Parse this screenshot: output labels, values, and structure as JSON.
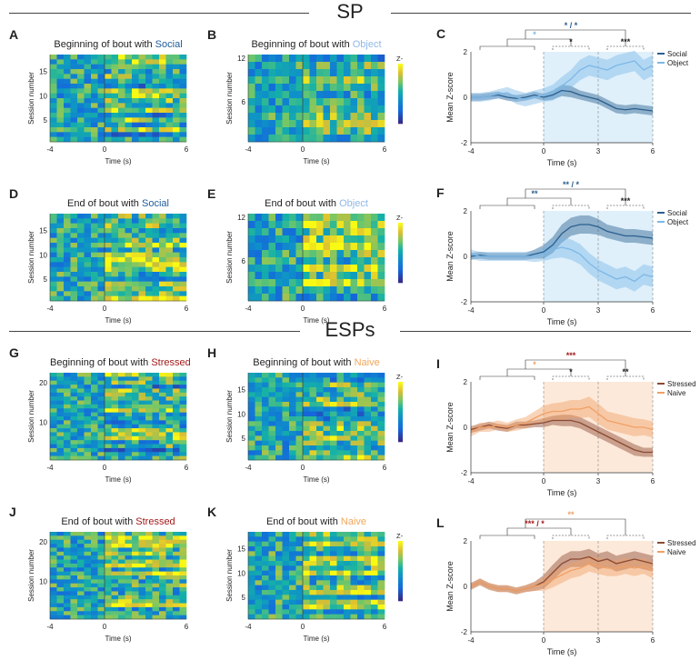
{
  "sections": [
    {
      "title": "SP"
    },
    {
      "title": "ESPs"
    }
  ],
  "colors": {
    "social": "#2b5f8e",
    "object": "#7db8e6",
    "stressed": "#8b4a33",
    "naive": "#f0a066",
    "socialTitle": "#1f5c99",
    "objectTitle": "#8fb8e8",
    "stressedTitle": "#a31a1a",
    "naiveTitle": "#f0a75a",
    "blueShade": "#dff0fb",
    "orangeShade": "#fde9d9"
  },
  "heatmaps": [
    {
      "letter": "A",
      "title_pre": "Beginning of bout with ",
      "title_key": "Social",
      "key_color": "social",
      "ylabel": "Session number",
      "xlabel": "Time (s)",
      "rows": 18,
      "yticks": [
        "15",
        "10",
        "5"
      ],
      "xticks": [
        "-4",
        "0",
        "6"
      ],
      "colorbar": false
    },
    {
      "letter": "B",
      "title_pre": "Beginning of bout with ",
      "title_key": "Object",
      "key_color": "object",
      "ylabel": "Session number",
      "xlabel": "Time (s)",
      "rows": 12,
      "yticks": [
        "12",
        "6"
      ],
      "xticks": [
        "-4",
        "0",
        "6"
      ],
      "colorbar": true,
      "cbar_title": "Z-score",
      "cbar_ticks": [
        "1",
        "0",
        "-1"
      ]
    },
    {
      "letter": "D",
      "title_pre": "End of bout with ",
      "title_key": "Social",
      "key_color": "social",
      "ylabel": "Session number",
      "xlabel": "Time (s)",
      "rows": 18,
      "yticks": [
        "15",
        "10",
        "5"
      ],
      "xticks": [
        "-4",
        "0",
        "6"
      ],
      "colorbar": false
    },
    {
      "letter": "E",
      "title_pre": "End of bout with ",
      "title_key": "Object",
      "key_color": "object",
      "ylabel": "Session number",
      "xlabel": "Time (s)",
      "rows": 12,
      "yticks": [
        "12",
        "6"
      ],
      "xticks": [
        "-4",
        "0",
        "6"
      ],
      "colorbar": true,
      "cbar_title": "Z-score",
      "cbar_ticks": [
        "1",
        "0",
        "-1"
      ]
    },
    {
      "letter": "G",
      "title_pre": "Beginning of bout with ",
      "title_key": "Stressed",
      "key_color": "stressed",
      "ylabel": "Session number",
      "xlabel": "Time (s)",
      "rows": 22,
      "yticks": [
        "20",
        "10"
      ],
      "xticks": [
        "-4",
        "0",
        "6"
      ],
      "colorbar": false
    },
    {
      "letter": "H",
      "title_pre": "Beginning of bout with ",
      "title_key": "Naive",
      "key_color": "naive",
      "ylabel": "Session number",
      "xlabel": "Time (s)",
      "rows": 18,
      "yticks": [
        "15",
        "10",
        "5"
      ],
      "xticks": [
        "-4",
        "0",
        "6"
      ],
      "colorbar": true,
      "cbar_title": "Z-score",
      "cbar_ticks": [
        "1",
        "0",
        "-1"
      ]
    },
    {
      "letter": "J",
      "title_pre": "End of bout with ",
      "title_key": "Stressed",
      "key_color": "stressed",
      "ylabel": "Session number",
      "xlabel": "Time (s)",
      "rows": 22,
      "yticks": [
        "20",
        "10"
      ],
      "xticks": [
        "-4",
        "0",
        "6"
      ],
      "colorbar": false
    },
    {
      "letter": "K",
      "title_pre": "End of bout with ",
      "title_key": "Naive",
      "key_color": "naive",
      "ylabel": "Session number",
      "xlabel": "Time (s)",
      "rows": 18,
      "yticks": [
        "15",
        "10",
        "5"
      ],
      "xticks": [
        "-4",
        "0",
        "6"
      ],
      "colorbar": true,
      "cbar_title": "Z-score",
      "cbar_ticks": [
        "1",
        "0",
        "-1"
      ]
    }
  ],
  "chart_data": [
    {
      "letter": "C",
      "type": "line",
      "xlabel": "Time (s)",
      "ylabel": "Mean Z-score",
      "xlim": [
        -4,
        6
      ],
      "ylim": [
        -2,
        2
      ],
      "xticks": [
        "-4",
        "0",
        "3",
        "6"
      ],
      "yticks": [
        "2",
        "0",
        "-2"
      ],
      "shade": "blue",
      "x": [
        -4,
        -3.5,
        -3,
        -2.5,
        -2,
        -1.5,
        -1,
        -0.5,
        0,
        0.5,
        1,
        1.5,
        2,
        2.5,
        3,
        3.5,
        4,
        4.5,
        5,
        5.5,
        6
      ],
      "series": [
        {
          "name": "Social",
          "color": "social",
          "y": [
            0,
            0,
            0.05,
            0.1,
            0,
            -0.05,
            0,
            0.1,
            0,
            0.1,
            0.3,
            0.25,
            0.1,
            0,
            -0.1,
            -0.3,
            -0.5,
            -0.55,
            -0.5,
            -0.55,
            -0.6
          ],
          "err": [
            0.15,
            0.15,
            0.15,
            0.15,
            0.15,
            0.15,
            0.15,
            0.15,
            0.15,
            0.2,
            0.25,
            0.25,
            0.2,
            0.2,
            0.2,
            0.2,
            0.2,
            0.2,
            0.2,
            0.2,
            0.2
          ]
        },
        {
          "name": "Object",
          "color": "object",
          "y": [
            0,
            0,
            0.05,
            0.15,
            0.2,
            0,
            -0.1,
            0,
            0.1,
            0.2,
            0.5,
            0.8,
            1.2,
            1.4,
            1.3,
            1.2,
            1.4,
            1.5,
            1.6,
            1.2,
            1.4
          ],
          "err": [
            0.2,
            0.2,
            0.2,
            0.2,
            0.25,
            0.3,
            0.3,
            0.3,
            0.3,
            0.35,
            0.4,
            0.4,
            0.45,
            0.45,
            0.45,
            0.45,
            0.45,
            0.45,
            0.45,
            0.45,
            0.45
          ]
        }
      ],
      "brackets": [
        {
          "x1": -3.5,
          "x2": -0.5,
          "y": 1.35
        },
        {
          "x1": 0.5,
          "x2": 2.5,
          "y": 1.35
        },
        {
          "x1": 3.5,
          "x2": 5.5,
          "y": 1.35
        }
      ],
      "stars": [
        {
          "text": "*",
          "x": 1.5,
          "y": 1.55,
          "color": "#222"
        },
        {
          "text": "***",
          "x": 4.5,
          "y": 1.55,
          "color": "#222"
        },
        {
          "text": "*",
          "x": -0.5,
          "y": 1.85,
          "color": "#7db8e6"
        },
        {
          "text": "* / *",
          "x": 1.5,
          "y": 2.35,
          "color": "#2b5f8e"
        }
      ],
      "legend": [
        "Social",
        "Object"
      ]
    },
    {
      "letter": "F",
      "type": "line",
      "xlabel": "Time (s)",
      "ylabel": "Mean Z-score",
      "xlim": [
        -4,
        6
      ],
      "ylim": [
        -2,
        2
      ],
      "xticks": [
        "-4",
        "0",
        "3",
        "6"
      ],
      "yticks": [
        "2",
        "0",
        "-2"
      ],
      "shade": "blue",
      "x": [
        -4,
        -3.5,
        -3,
        -2.5,
        -2,
        -1.5,
        -1,
        -0.5,
        0,
        0.5,
        1,
        1.5,
        2,
        2.5,
        3,
        3.5,
        4,
        4.5,
        5,
        5.5,
        6
      ],
      "series": [
        {
          "name": "Social",
          "color": "social",
          "y": [
            0,
            0.05,
            0,
            0,
            0,
            0,
            0,
            0.1,
            0.2,
            0.5,
            1,
            1.3,
            1.4,
            1.4,
            1.3,
            1.1,
            1,
            0.9,
            0.9,
            0.85,
            0.8
          ],
          "err": [
            0.15,
            0.15,
            0.15,
            0.15,
            0.15,
            0.15,
            0.15,
            0.2,
            0.3,
            0.35,
            0.4,
            0.4,
            0.4,
            0.4,
            0.35,
            0.3,
            0.3,
            0.3,
            0.3,
            0.3,
            0.3
          ]
        },
        {
          "name": "Object",
          "color": "object",
          "y": [
            0.1,
            0,
            0,
            0,
            0,
            0,
            0,
            0,
            0.1,
            0.3,
            0.4,
            0.3,
            0.1,
            -0.3,
            -0.6,
            -0.8,
            -1,
            -0.9,
            -1.1,
            -0.8,
            -0.9
          ],
          "err": [
            0.2,
            0.2,
            0.2,
            0.2,
            0.2,
            0.2,
            0.2,
            0.25,
            0.3,
            0.4,
            0.45,
            0.45,
            0.45,
            0.45,
            0.45,
            0.45,
            0.45,
            0.45,
            0.45,
            0.45,
            0.45
          ]
        }
      ],
      "brackets": [
        {
          "x1": -3.5,
          "x2": -0.5,
          "y": 1.35
        },
        {
          "x1": 0.5,
          "x2": 2.5,
          "y": 1.35
        },
        {
          "x1": 3.5,
          "x2": 5.5,
          "y": 1.35
        }
      ],
      "stars": [
        {
          "text": "***",
          "x": 4.5,
          "y": 1.55,
          "color": "#222"
        },
        {
          "text": "**",
          "x": -0.5,
          "y": 1.85,
          "color": "#2b5f8e"
        },
        {
          "text": "** / *",
          "x": 1.5,
          "y": 2.35,
          "color": "#2b5f8e"
        }
      ],
      "legend": [
        "Social",
        "Object"
      ]
    },
    {
      "letter": "I",
      "type": "line",
      "xlabel": "Time (s)",
      "ylabel": "Mean Z-score",
      "xlim": [
        -4,
        6
      ],
      "ylim": [
        -2,
        2
      ],
      "xticks": [
        "-4",
        "0",
        "3",
        "6"
      ],
      "yticks": [
        "2",
        "0",
        "-2"
      ],
      "shade": "orange",
      "x": [
        -4,
        -3.5,
        -3,
        -2.5,
        -2,
        -1.5,
        -1,
        -0.5,
        0,
        0.5,
        1,
        1.5,
        2,
        2.5,
        3,
        3.5,
        4,
        4.5,
        5,
        5.5,
        6
      ],
      "series": [
        {
          "name": "Stressed",
          "color": "stressed",
          "y": [
            -0.1,
            0,
            0.1,
            0,
            -0.05,
            0.1,
            0.1,
            0.15,
            0.2,
            0.3,
            0.3,
            0.3,
            0.2,
            0,
            -0.2,
            -0.4,
            -0.6,
            -0.8,
            -1,
            -1.1,
            -1.1
          ],
          "err": [
            0.15,
            0.15,
            0.15,
            0.15,
            0.15,
            0.15,
            0.15,
            0.15,
            0.2,
            0.2,
            0.25,
            0.25,
            0.25,
            0.25,
            0.25,
            0.25,
            0.25,
            0.25,
            0.25,
            0.2,
            0.2
          ]
        },
        {
          "name": "Naive",
          "color": "naive",
          "y": [
            -0.2,
            0,
            0,
            0.1,
            0,
            0.1,
            0.2,
            0.4,
            0.6,
            0.7,
            0.7,
            0.8,
            0.8,
            0.9,
            0.6,
            0.3,
            0.2,
            0.1,
            0,
            0,
            -0.1
          ],
          "err": [
            0.2,
            0.2,
            0.2,
            0.2,
            0.2,
            0.25,
            0.25,
            0.3,
            0.35,
            0.35,
            0.4,
            0.4,
            0.4,
            0.45,
            0.45,
            0.4,
            0.4,
            0.4,
            0.4,
            0.35,
            0.35
          ]
        }
      ],
      "brackets": [
        {
          "x1": -3.5,
          "x2": -0.5,
          "y": 1.35
        },
        {
          "x1": 0.5,
          "x2": 2.5,
          "y": 1.35
        },
        {
          "x1": 3.5,
          "x2": 5.5,
          "y": 1.35
        }
      ],
      "stars": [
        {
          "text": "*",
          "x": 1.5,
          "y": 1.55,
          "color": "#222"
        },
        {
          "text": "**",
          "x": 4.5,
          "y": 1.55,
          "color": "#222"
        },
        {
          "text": "*",
          "x": -0.5,
          "y": 1.85,
          "color": "#f0a066"
        },
        {
          "text": "***",
          "x": 1.5,
          "y": 2.35,
          "color": "#a31a1a"
        }
      ],
      "legend": [
        "Stressed",
        "Naive"
      ]
    },
    {
      "letter": "L",
      "type": "line",
      "xlabel": "Time (s)",
      "ylabel": "Mean Z-score",
      "xlim": [
        -4,
        6
      ],
      "ylim": [
        -2,
        2
      ],
      "xticks": [
        "-4",
        "0",
        "3",
        "6"
      ],
      "yticks": [
        "2",
        "0",
        "-2"
      ],
      "shade": "orange",
      "x": [
        -4,
        -3.5,
        -3,
        -2.5,
        -2,
        -1.5,
        -1,
        -0.5,
        0,
        0.5,
        1,
        1.5,
        2,
        2.5,
        3,
        3.5,
        4,
        4.5,
        5,
        5.5,
        6
      ],
      "series": [
        {
          "name": "Stressed",
          "color": "stressed",
          "y": [
            0,
            0.2,
            0,
            -0.1,
            -0.1,
            -0.2,
            -0.1,
            0,
            0.2,
            0.6,
            1,
            1.2,
            1.2,
            1.3,
            1.1,
            1.2,
            1,
            1.1,
            1.2,
            1.1,
            1
          ],
          "err": [
            0.15,
            0.15,
            0.15,
            0.15,
            0.15,
            0.15,
            0.15,
            0.2,
            0.3,
            0.35,
            0.35,
            0.35,
            0.35,
            0.35,
            0.35,
            0.35,
            0.35,
            0.35,
            0.35,
            0.35,
            0.35
          ]
        },
        {
          "name": "Naive",
          "color": "naive",
          "y": [
            0,
            0.2,
            0,
            -0.1,
            -0.1,
            -0.2,
            -0.1,
            0,
            0.1,
            0.3,
            0.5,
            0.7,
            0.8,
            1,
            0.9,
            0.8,
            0.8,
            0.9,
            0.8,
            0.9,
            0.7
          ],
          "err": [
            0.15,
            0.15,
            0.15,
            0.15,
            0.15,
            0.15,
            0.15,
            0.2,
            0.3,
            0.35,
            0.35,
            0.35,
            0.35,
            0.35,
            0.35,
            0.35,
            0.35,
            0.35,
            0.35,
            0.35,
            0.35
          ]
        }
      ],
      "brackets": [
        {
          "x1": -3.5,
          "x2": -0.5,
          "y": 1.35
        },
        {
          "x1": 0.5,
          "x2": 2.5,
          "y": 1.35
        },
        {
          "x1": 3.5,
          "x2": 5.5,
          "y": 1.35
        }
      ],
      "stars": [
        {
          "text": "*** / *",
          "x": -0.5,
          "y": 1.85,
          "color": "#a31a1a"
        },
        {
          "text": "**",
          "x": 1.5,
          "y": 2.35,
          "color": "#f0a066"
        }
      ],
      "legend": [
        "Stressed",
        "Naive"
      ]
    }
  ]
}
